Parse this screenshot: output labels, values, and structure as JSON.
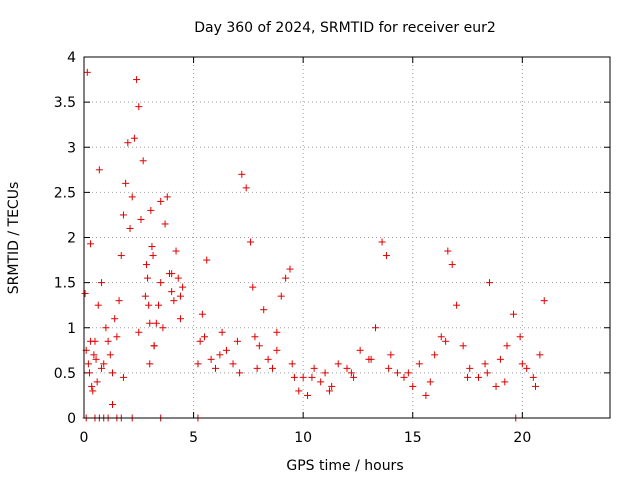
{
  "chart_data": {
    "type": "scatter",
    "title": "Day 360 of 2024, SRMTID for receiver eur2",
    "xlabel": "GPS time / hours",
    "ylabel": "SRMTID / TECUs",
    "xlim": [
      0,
      24
    ],
    "ylim": [
      0,
      4
    ],
    "xticks": [
      0,
      5,
      10,
      15,
      20
    ],
    "yticks": [
      0,
      0.5,
      1,
      1.5,
      2,
      2.5,
      3,
      3.5,
      4
    ],
    "xtick_labels": [
      "0",
      "5",
      "10",
      "15",
      "20"
    ],
    "ytick_labels": [
      "0",
      "0.5",
      "1",
      "1.5",
      "2",
      "2.5",
      "3",
      "3.5",
      "4"
    ],
    "grid": true,
    "marker": "plus",
    "color": "#e00000",
    "series": [
      {
        "name": "SRMTID",
        "x": [
          0.05,
          0.1,
          0.15,
          0.2,
          0.25,
          0.3,
          0.35,
          0.4,
          0.45,
          0.5,
          0.55,
          0.6,
          0.65,
          0.7,
          0.8,
          0.9,
          1.0,
          1.1,
          1.2,
          1.3,
          1.4,
          1.5,
          1.6,
          1.7,
          1.8,
          1.9,
          2.0,
          2.1,
          2.2,
          2.3,
          2.4,
          2.5,
          2.6,
          2.7,
          2.8,
          2.85,
          2.9,
          2.95,
          3.0,
          3.05,
          3.1,
          3.15,
          3.2,
          3.3,
          3.4,
          3.5,
          3.6,
          3.7,
          3.8,
          3.9,
          4.0,
          4.1,
          4.2,
          4.3,
          4.4,
          4.5,
          5.3,
          5.4,
          5.5,
          5.6,
          5.8,
          6.0,
          6.2,
          6.5,
          6.8,
          7.0,
          7.2,
          7.4,
          7.6,
          7.7,
          7.8,
          8.0,
          8.2,
          8.4,
          8.6,
          8.8,
          9.0,
          9.2,
          9.4,
          9.6,
          9.8,
          10.0,
          10.2,
          10.5,
          10.8,
          11.0,
          11.3,
          11.6,
          12.0,
          12.3,
          12.6,
          13.0,
          13.3,
          13.6,
          13.8,
          14.0,
          14.3,
          14.6,
          15.0,
          15.3,
          15.6,
          16.0,
          16.3,
          16.6,
          16.8,
          17.0,
          17.3,
          17.6,
          18.0,
          18.3,
          18.5,
          18.8,
          19.0,
          19.3,
          19.6,
          19.9,
          20.2,
          20.5,
          20.8,
          21.0,
          0.3,
          0.8,
          1.3,
          1.8,
          2.5,
          3.0,
          3.2,
          3.5,
          4.0,
          4.4,
          5.2,
          6.3,
          7.1,
          7.9,
          8.8,
          9.5,
          10.4,
          11.2,
          12.2,
          13.1,
          13.9,
          14.8,
          15.8,
          16.5,
          17.5,
          18.4,
          19.2,
          20.0,
          20.6,
          0.1,
          0.5,
          0.7,
          0.9,
          1.1,
          1.5,
          1.7,
          2.2,
          3.5,
          5.2,
          19.7
        ],
        "y": [
          1.38,
          0.75,
          3.83,
          0.6,
          0.5,
          1.93,
          0.35,
          0.3,
          0.7,
          0.85,
          0.65,
          0.4,
          1.25,
          2.75,
          1.5,
          0.6,
          1.0,
          0.85,
          0.7,
          0.5,
          1.1,
          0.9,
          1.3,
          1.8,
          2.25,
          2.6,
          3.05,
          2.1,
          2.45,
          3.1,
          3.75,
          3.45,
          2.2,
          2.85,
          1.35,
          1.7,
          1.55,
          1.25,
          1.05,
          2.3,
          1.9,
          1.8,
          0.8,
          1.05,
          1.25,
          1.5,
          1.0,
          2.15,
          2.45,
          1.6,
          1.4,
          1.3,
          1.85,
          1.55,
          1.1,
          1.45,
          0.85,
          1.15,
          0.9,
          1.75,
          0.65,
          0.55,
          0.7,
          0.75,
          0.6,
          0.85,
          2.7,
          2.55,
          1.95,
          1.45,
          0.9,
          0.8,
          1.2,
          0.65,
          0.55,
          0.95,
          1.35,
          1.55,
          1.65,
          0.45,
          0.3,
          0.45,
          0.25,
          0.55,
          0.4,
          0.5,
          0.35,
          0.6,
          0.55,
          0.45,
          0.75,
          0.65,
          1.0,
          1.95,
          1.8,
          0.7,
          0.5,
          0.45,
          0.35,
          0.6,
          0.25,
          0.7,
          0.9,
          1.85,
          1.7,
          1.25,
          0.8,
          0.55,
          0.45,
          0.6,
          1.5,
          0.35,
          0.65,
          0.8,
          1.15,
          0.9,
          0.55,
          0.45,
          0.7,
          1.3,
          0.85,
          0.55,
          0.15,
          0.45,
          0.95,
          0.6,
          0.8,
          2.4,
          1.6,
          1.35,
          0.6,
          0.95,
          0.5,
          0.55,
          0.75,
          0.6,
          0.45,
          0.3,
          0.5,
          0.65,
          0.55,
          0.5,
          0.4,
          0.85,
          0.45,
          0.5,
          0.4,
          0.6,
          0.35,
          0.0,
          0.0,
          0.0,
          0.0,
          0.0,
          0.0,
          0.0,
          0.0,
          0.0,
          0.0,
          0.0
        ]
      }
    ]
  }
}
